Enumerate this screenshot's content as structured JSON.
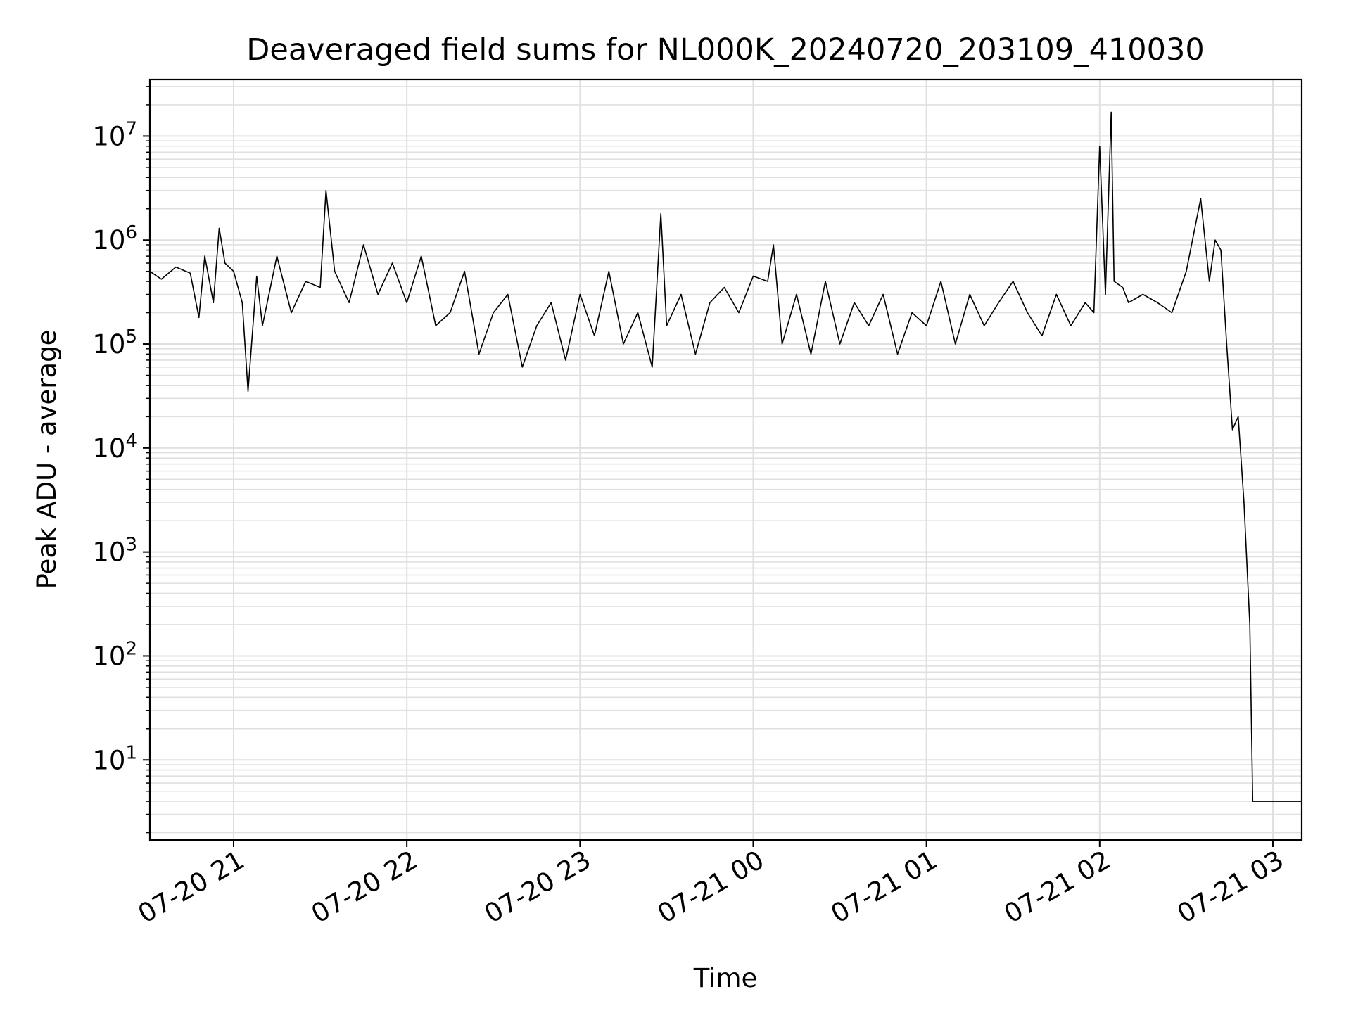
{
  "chart_data": {
    "type": "line",
    "title": "Deaveraged field sums for NL000K_20240720_203109_410030",
    "xlabel": "Time",
    "ylabel": "Peak ADU - average",
    "y_scale": "log",
    "ylim": [
      1.7,
      35000000
    ],
    "xlim": [
      "07-20 20:31",
      "07-21 03:10"
    ],
    "grid": true,
    "line_color": "#000000",
    "grid_color": "#e0e0e0",
    "x_ticks": [
      {
        "label": "07-20 21",
        "time": "07-20 21:00"
      },
      {
        "label": "07-20 22",
        "time": "07-20 22:00"
      },
      {
        "label": "07-20 23",
        "time": "07-20 23:00"
      },
      {
        "label": "07-21 00",
        "time": "07-21 00:00"
      },
      {
        "label": "07-21 01",
        "time": "07-21 01:00"
      },
      {
        "label": "07-21 02",
        "time": "07-21 02:00"
      },
      {
        "label": "07-21 03",
        "time": "07-21 03:00"
      }
    ],
    "y_ticks": [
      {
        "base": "10",
        "exp": "1",
        "value": 10
      },
      {
        "base": "10",
        "exp": "2",
        "value": 100
      },
      {
        "base": "10",
        "exp": "3",
        "value": 1000
      },
      {
        "base": "10",
        "exp": "4",
        "value": 10000
      },
      {
        "base": "10",
        "exp": "5",
        "value": 100000
      },
      {
        "base": "10",
        "exp": "6",
        "value": 1000000
      },
      {
        "base": "10",
        "exp": "7",
        "value": 10000000
      }
    ],
    "series": [
      {
        "x": [
          "07-20 20:31",
          "07-20 20:35",
          "07-20 20:40",
          "07-20 20:45",
          "07-20 20:48",
          "07-20 20:50",
          "07-20 20:53",
          "07-20 20:55",
          "07-20 20:57",
          "07-20 21:00",
          "07-20 21:03",
          "07-20 21:05",
          "07-20 21:08",
          "07-20 21:10",
          "07-20 21:15",
          "07-20 21:20",
          "07-20 21:25",
          "07-20 21:30",
          "07-20 21:32",
          "07-20 21:35",
          "07-20 21:40",
          "07-20 21:45",
          "07-20 21:50",
          "07-20 21:55",
          "07-20 22:00",
          "07-20 22:05",
          "07-20 22:10",
          "07-20 22:15",
          "07-20 22:20",
          "07-20 22:25",
          "07-20 22:30",
          "07-20 22:35",
          "07-20 22:40",
          "07-20 22:45",
          "07-20 22:50",
          "07-20 22:55",
          "07-20 23:00",
          "07-20 23:05",
          "07-20 23:10",
          "07-20 23:15",
          "07-20 23:20",
          "07-20 23:25",
          "07-20 23:28",
          "07-20 23:30",
          "07-20 23:35",
          "07-20 23:40",
          "07-20 23:45",
          "07-20 23:50",
          "07-20 23:55",
          "07-21 00:00",
          "07-21 00:05",
          "07-21 00:07",
          "07-21 00:10",
          "07-21 00:15",
          "07-21 00:20",
          "07-21 00:25",
          "07-21 00:30",
          "07-21 00:35",
          "07-21 00:40",
          "07-21 00:45",
          "07-21 00:50",
          "07-21 00:55",
          "07-21 01:00",
          "07-21 01:05",
          "07-21 01:10",
          "07-21 01:15",
          "07-21 01:20",
          "07-21 01:25",
          "07-21 01:30",
          "07-21 01:35",
          "07-21 01:40",
          "07-21 01:45",
          "07-21 01:50",
          "07-21 01:55",
          "07-21 01:58",
          "07-21 02:00",
          "07-21 02:02",
          "07-21 02:04",
          "07-21 02:05",
          "07-21 02:08",
          "07-21 02:10",
          "07-21 02:15",
          "07-21 02:20",
          "07-21 02:25",
          "07-21 02:30",
          "07-21 02:35",
          "07-21 02:38",
          "07-21 02:40",
          "07-21 02:42",
          "07-21 02:44",
          "07-21 02:46",
          "07-21 02:48",
          "07-21 02:50",
          "07-21 02:52",
          "07-21 02:53",
          "07-21 02:54",
          "07-21 02:55",
          "07-21 03:00",
          "07-21 03:05",
          "07-21 03:10"
        ],
        "y": [
          500000,
          420000,
          550000,
          480000,
          180000,
          700000,
          250000,
          1300000,
          600000,
          500000,
          250000,
          35000,
          450000,
          150000,
          700000,
          200000,
          400000,
          350000,
          3000000,
          500000,
          250000,
          900000,
          300000,
          600000,
          250000,
          700000,
          150000,
          200000,
          500000,
          80000,
          200000,
          300000,
          60000,
          150000,
          250000,
          70000,
          300000,
          120000,
          500000,
          100000,
          200000,
          60000,
          1800000,
          150000,
          300000,
          80000,
          250000,
          350000,
          200000,
          450000,
          400000,
          900000,
          100000,
          300000,
          80000,
          400000,
          100000,
          250000,
          150000,
          300000,
          80000,
          200000,
          150000,
          400000,
          100000,
          300000,
          150000,
          250000,
          400000,
          200000,
          120000,
          300000,
          150000,
          250000,
          200000,
          8000000,
          300000,
          17000000,
          400000,
          350000,
          250000,
          300000,
          250000,
          200000,
          500000,
          2500000,
          400000,
          1000000,
          800000,
          100000,
          15000,
          20000,
          3000,
          200,
          4,
          4,
          4,
          4,
          4,
          4
        ]
      }
    ]
  }
}
